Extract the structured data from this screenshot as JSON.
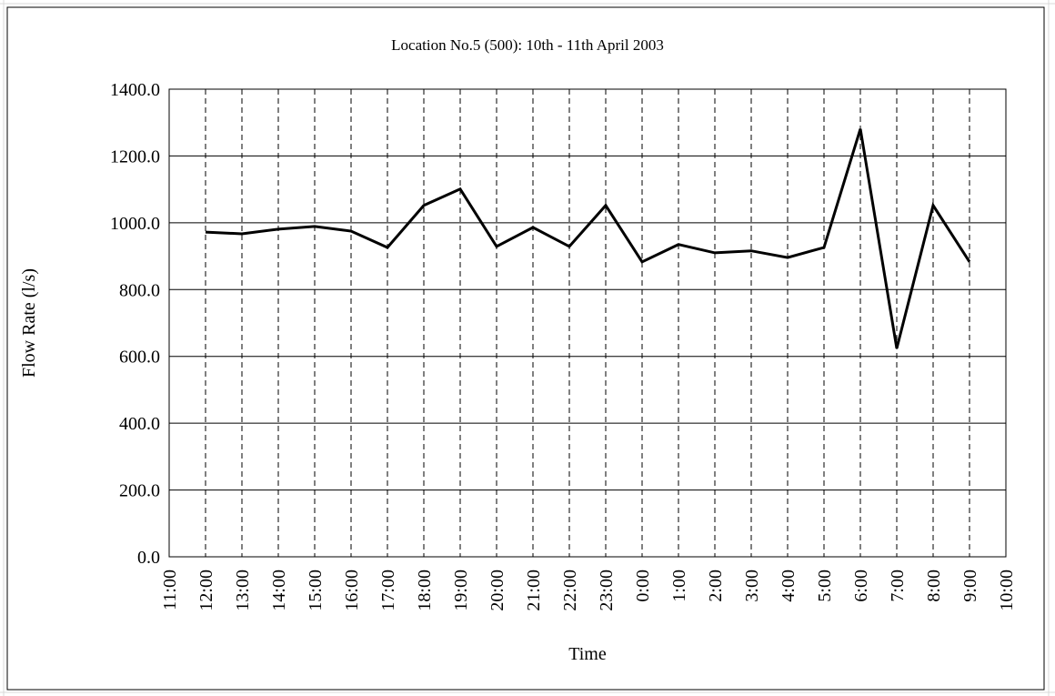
{
  "chart_data": {
    "type": "line",
    "title": "Location No.5 (500): 10th - 11th April 2003",
    "xlabel": "Time",
    "ylabel": "Flow Rate (l/s)",
    "categories": [
      "11:00",
      "12:00",
      "13:00",
      "14:00",
      "15:00",
      "16:00",
      "17:00",
      "18:00",
      "19:00",
      "20:00",
      "21:00",
      "22:00",
      "23:00",
      "0:00",
      "1:00",
      "2:00",
      "3:00",
      "4:00",
      "5:00",
      "6:00",
      "7:00",
      "8:00",
      "9:00",
      "10:00"
    ],
    "series": [
      {
        "name": "Flow Rate",
        "color": "#000000",
        "values": [
          null,
          972,
          967,
          981,
          989,
          975,
          926,
          1052,
          1101,
          929,
          986,
          929,
          1052,
          883,
          935,
          910,
          916,
          896,
          926,
          1281,
          624,
          1052,
          883,
          null
        ]
      }
    ],
    "ylim": [
      0,
      1400
    ],
    "yticks": [
      {
        "value": 0,
        "label": "0.0"
      },
      {
        "value": 200,
        "label": "200.0"
      },
      {
        "value": 400,
        "label": "400.0"
      },
      {
        "value": 600,
        "label": "600.0"
      },
      {
        "value": 800,
        "label": "800.0"
      },
      {
        "value": 1000,
        "label": "1000.0"
      },
      {
        "value": 1200,
        "label": "1200.0"
      },
      {
        "value": 1400,
        "label": "1400.0"
      }
    ],
    "grid": true
  }
}
